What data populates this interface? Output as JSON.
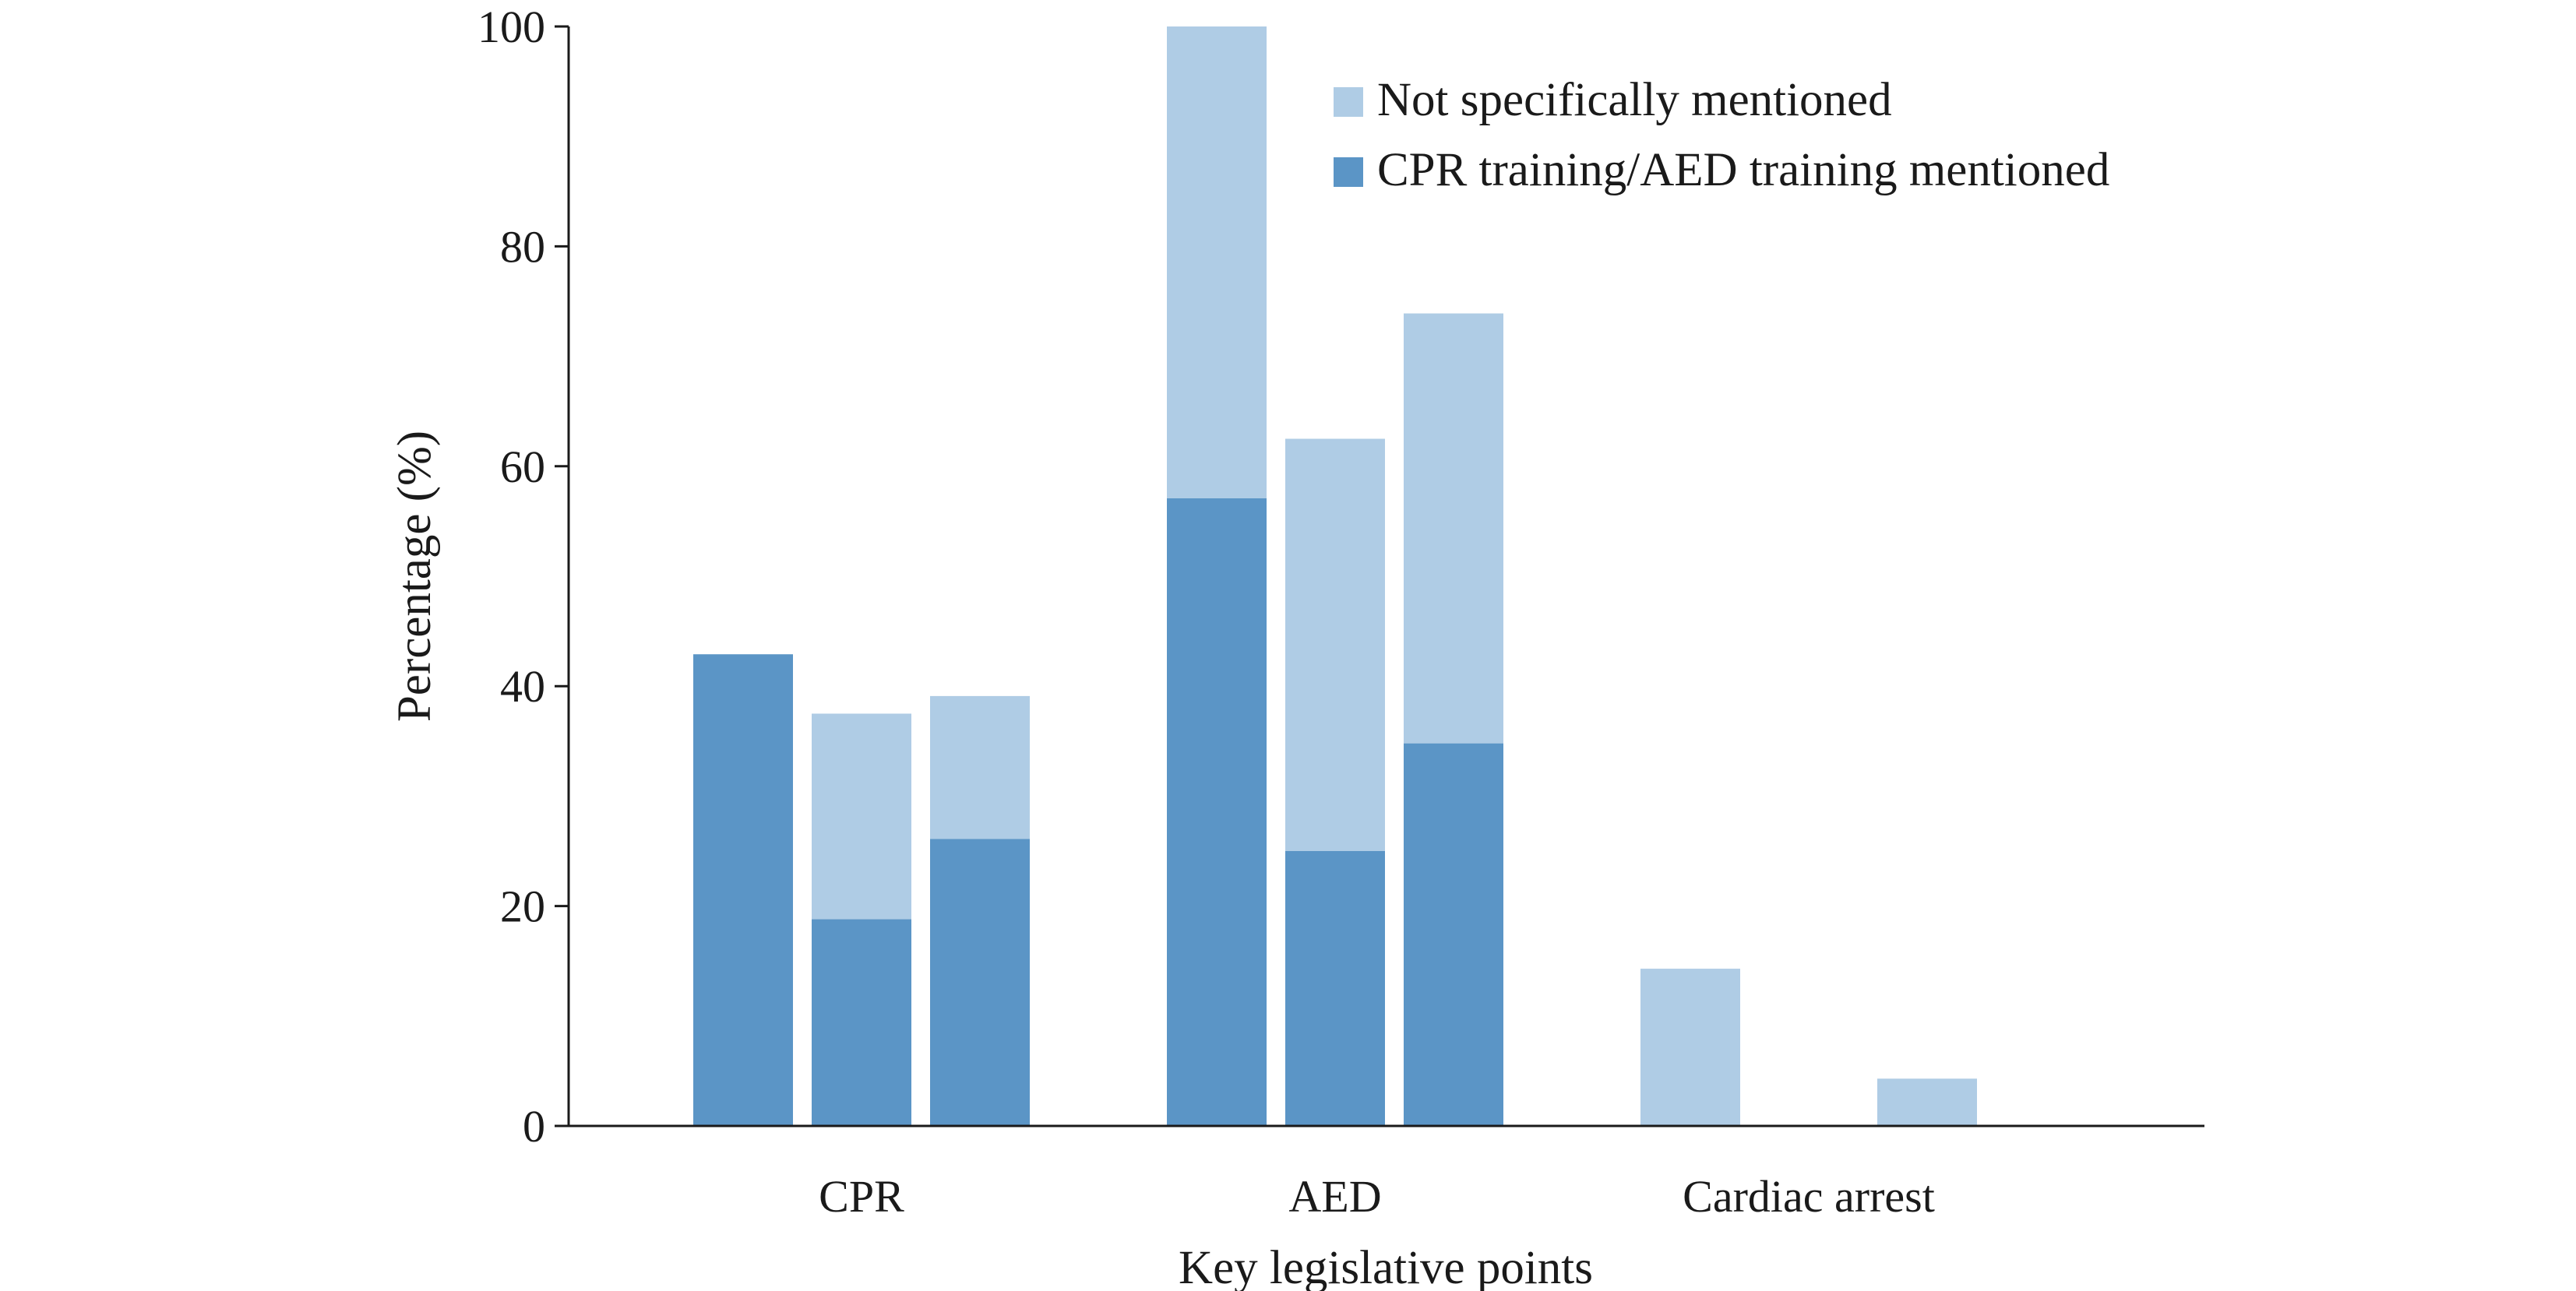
{
  "chart_data": {
    "type": "bar",
    "stacked": true,
    "title": "",
    "xlabel": "Key legislative points",
    "ylabel": "Percentage (%)",
    "ylim": [
      0,
      100
    ],
    "yticks": [
      0,
      20,
      40,
      60,
      80,
      100
    ],
    "grid": false,
    "legend_position": "top-right",
    "categories": [
      "CPR",
      "AED",
      "Cardiac arrest"
    ],
    "groups": [
      {
        "category": "CPR",
        "bars": [
          {
            "mentioned": 42.9,
            "not_mentioned": 0
          },
          {
            "mentioned": 18.8,
            "not_mentioned": 18.7
          },
          {
            "mentioned": 26.1,
            "not_mentioned": 13.0
          }
        ]
      },
      {
        "category": "AED",
        "bars": [
          {
            "mentioned": 57.1,
            "not_mentioned": 42.9
          },
          {
            "mentioned": 25.0,
            "not_mentioned": 37.5
          },
          {
            "mentioned": 34.8,
            "not_mentioned": 39.1
          }
        ]
      },
      {
        "category": "Cardiac arrest",
        "bars": [
          {
            "mentioned": 0,
            "not_mentioned": 14.3
          },
          {
            "mentioned": 0,
            "not_mentioned": 0
          },
          {
            "mentioned": 0,
            "not_mentioned": 4.3
          }
        ]
      }
    ],
    "series": [
      {
        "key": "not_mentioned",
        "name": "Not specifically mentioned",
        "color": "#afcce5"
      },
      {
        "key": "mentioned",
        "name": "CPR training/AED training mentioned",
        "color": "#5b95c6"
      }
    ]
  }
}
